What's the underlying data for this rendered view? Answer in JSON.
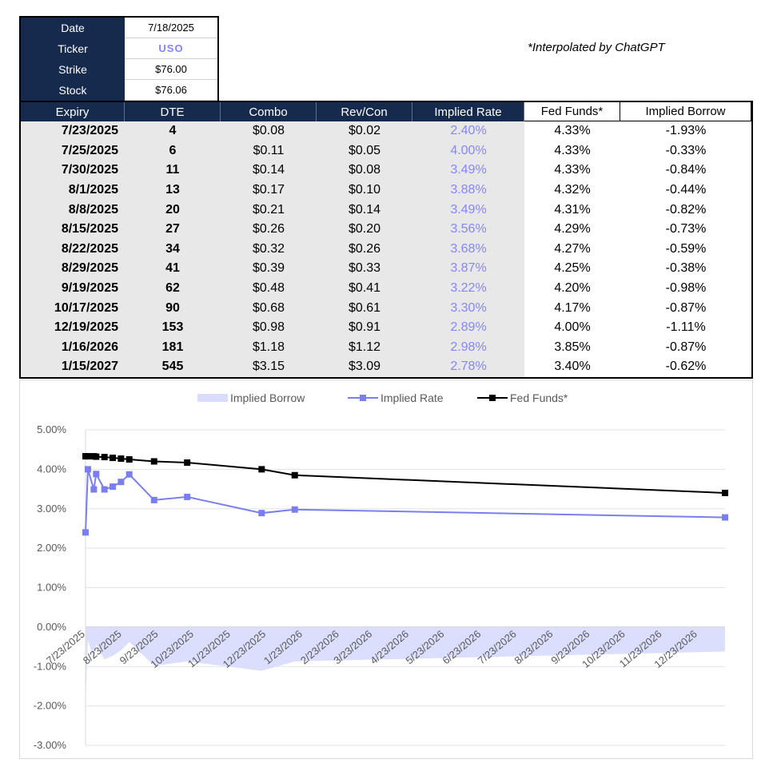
{
  "info": {
    "rows": [
      {
        "label": "Date",
        "value": "7/18/2025"
      },
      {
        "label": "Ticker",
        "value": "USO"
      },
      {
        "label": "Strike",
        "value": "$76.00"
      },
      {
        "label": "Stock",
        "value": "$76.06"
      }
    ]
  },
  "note": "*Interpolated by ChatGPT",
  "table": {
    "headers": [
      "Expiry",
      "DTE",
      "Combo",
      "Rev/Con",
      "Implied Rate",
      "Fed Funds*",
      "Implied Borrow"
    ],
    "rows": [
      [
        "7/23/2025",
        "4",
        "$0.08",
        "$0.02",
        "2.40%",
        "4.33%",
        "-1.93%"
      ],
      [
        "7/25/2025",
        "6",
        "$0.11",
        "$0.05",
        "4.00%",
        "4.33%",
        "-0.33%"
      ],
      [
        "7/30/2025",
        "11",
        "$0.14",
        "$0.08",
        "3.49%",
        "4.33%",
        "-0.84%"
      ],
      [
        "8/1/2025",
        "13",
        "$0.17",
        "$0.10",
        "3.88%",
        "4.32%",
        "-0.44%"
      ],
      [
        "8/8/2025",
        "20",
        "$0.21",
        "$0.14",
        "3.49%",
        "4.31%",
        "-0.82%"
      ],
      [
        "8/15/2025",
        "27",
        "$0.26",
        "$0.20",
        "3.56%",
        "4.29%",
        "-0.73%"
      ],
      [
        "8/22/2025",
        "34",
        "$0.32",
        "$0.26",
        "3.68%",
        "4.27%",
        "-0.59%"
      ],
      [
        "8/29/2025",
        "41",
        "$0.39",
        "$0.33",
        "3.87%",
        "4.25%",
        "-0.38%"
      ],
      [
        "9/19/2025",
        "62",
        "$0.48",
        "$0.41",
        "3.22%",
        "4.20%",
        "-0.98%"
      ],
      [
        "10/17/2025",
        "90",
        "$0.68",
        "$0.61",
        "3.30%",
        "4.17%",
        "-0.87%"
      ],
      [
        "12/19/2025",
        "153",
        "$0.98",
        "$0.91",
        "2.89%",
        "4.00%",
        "-1.11%"
      ],
      [
        "1/16/2026",
        "181",
        "$1.18",
        "$1.12",
        "2.98%",
        "3.85%",
        "-0.87%"
      ],
      [
        "1/15/2027",
        "545",
        "$3.15",
        "$3.09",
        "2.78%",
        "3.40%",
        "-0.62%"
      ]
    ]
  },
  "chart_data": {
    "type": "line",
    "title": "",
    "legend_position": "top",
    "grid": "horizontal",
    "ylim": [
      -0.03,
      0.05
    ],
    "y_ticks": [
      0.05,
      0.04,
      0.03,
      0.02,
      0.01,
      0.0,
      -0.01,
      -0.02,
      -0.03
    ],
    "y_tick_labels": [
      "5.00%",
      "4.00%",
      "3.00%",
      "2.00%",
      "1.00%",
      "0.00%",
      "-1.00%",
      "-2.00%",
      "-3.00%"
    ],
    "x_tick_labels": [
      "7/23/2025",
      "8/23/2025",
      "9/23/2025",
      "10/23/2025",
      "11/23/2025",
      "12/23/2025",
      "1/23/2026",
      "2/23/2026",
      "3/23/2026",
      "4/23/2026",
      "5/23/2026",
      "6/23/2026",
      "7/23/2026",
      "8/23/2026",
      "9/23/2026",
      "10/23/2026",
      "11/23/2026",
      "12/23/2026"
    ],
    "x_tick_dates": [
      "2025-07-23",
      "2025-08-23",
      "2025-09-23",
      "2025-10-23",
      "2025-11-23",
      "2025-12-23",
      "2026-01-23",
      "2026-02-23",
      "2026-03-23",
      "2026-04-23",
      "2026-05-23",
      "2026-06-23",
      "2026-07-23",
      "2026-08-23",
      "2026-09-23",
      "2026-10-23",
      "2026-11-23",
      "2026-12-23"
    ],
    "xlim": [
      "2025-07-23",
      "2027-01-15"
    ],
    "x": [
      "2025-07-23",
      "2025-07-25",
      "2025-07-30",
      "2025-08-01",
      "2025-08-08",
      "2025-08-15",
      "2025-08-22",
      "2025-08-29",
      "2025-09-19",
      "2025-10-17",
      "2025-12-19",
      "2026-01-16",
      "2027-01-15"
    ],
    "series": [
      {
        "name": "Implied Borrow",
        "kind": "area",
        "color": "#d9dcfc",
        "values": [
          -0.0193,
          -0.0033,
          -0.0084,
          -0.0044,
          -0.0082,
          -0.0073,
          -0.0059,
          -0.0038,
          -0.0098,
          -0.0087,
          -0.0111,
          -0.0087,
          -0.0062
        ]
      },
      {
        "name": "Implied Rate",
        "kind": "line",
        "color": "#7a7ef0",
        "values": [
          0.024,
          0.04,
          0.0349,
          0.0388,
          0.0349,
          0.0356,
          0.0368,
          0.0387,
          0.0322,
          0.033,
          0.0289,
          0.0298,
          0.0278
        ]
      },
      {
        "name": "Fed Funds*",
        "kind": "line",
        "color": "#000000",
        "values": [
          0.0433,
          0.0433,
          0.0433,
          0.0432,
          0.0431,
          0.0429,
          0.0427,
          0.0425,
          0.042,
          0.0417,
          0.04,
          0.0385,
          0.034
        ]
      }
    ]
  }
}
